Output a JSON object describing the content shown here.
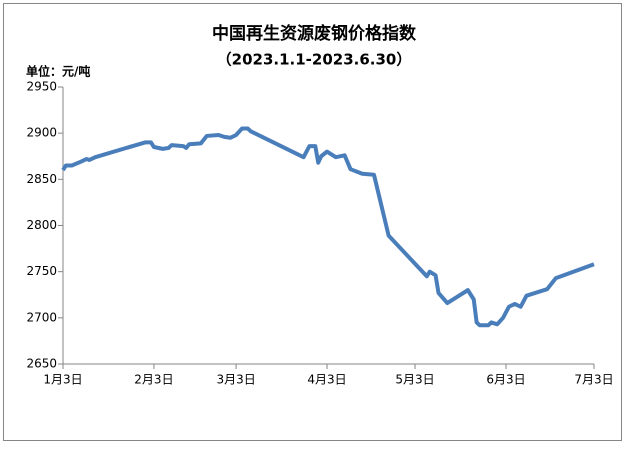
{
  "chart_data": {
    "type": "line",
    "title": "中国再生资源废钢价格指数",
    "subtitle": "（2023.1.1-2023.6.30）",
    "y_label": "单位：元/吨",
    "xlim": [
      0,
      181
    ],
    "xticks": [
      {
        "value": 0,
        "label": "1月3日"
      },
      {
        "value": 31,
        "label": "2月3日"
      },
      {
        "value": 59,
        "label": "3月3日"
      },
      {
        "value": 90,
        "label": "4月3日"
      },
      {
        "value": 120,
        "label": "5月3日"
      },
      {
        "value": 151,
        "label": "6月3日"
      },
      {
        "value": 181,
        "label": "7月3日"
      }
    ],
    "ylim": [
      2650,
      2950
    ],
    "yticks": [
      2650,
      2700,
      2750,
      2800,
      2850,
      2900,
      2950
    ],
    "grid": false,
    "series": [
      {
        "color": "#4a7ebb",
        "x": [
          0,
          1,
          3,
          6,
          8,
          9,
          11,
          28,
          30,
          31,
          34,
          36,
          37,
          41,
          42,
          43,
          47,
          49,
          53,
          55,
          57,
          59,
          61,
          63,
          64,
          82,
          84,
          86,
          87,
          88,
          90,
          93,
          96,
          98,
          102,
          106,
          111,
          124,
          125,
          127,
          128,
          131,
          138,
          140,
          141,
          142,
          145,
          146,
          148,
          150,
          152,
          154,
          156,
          158,
          165,
          168,
          181
        ],
        "values": [
          2860,
          2865,
          2865,
          2869,
          2872,
          2871,
          2874,
          2890,
          2890,
          2885,
          2883,
          2884,
          2887,
          2886,
          2884,
          2888,
          2889,
          2897,
          2898,
          2896,
          2895,
          2898,
          2905,
          2905,
          2902,
          2874,
          2886,
          2886,
          2868,
          2875,
          2880,
          2874,
          2876,
          2861,
          2856,
          2855,
          2789,
          2745,
          2750,
          2746,
          2727,
          2716,
          2730,
          2720,
          2695,
          2692,
          2692,
          2695,
          2693,
          2700,
          2712,
          2715,
          2712,
          2724,
          2731,
          2743,
          2758
        ]
      }
    ]
  }
}
